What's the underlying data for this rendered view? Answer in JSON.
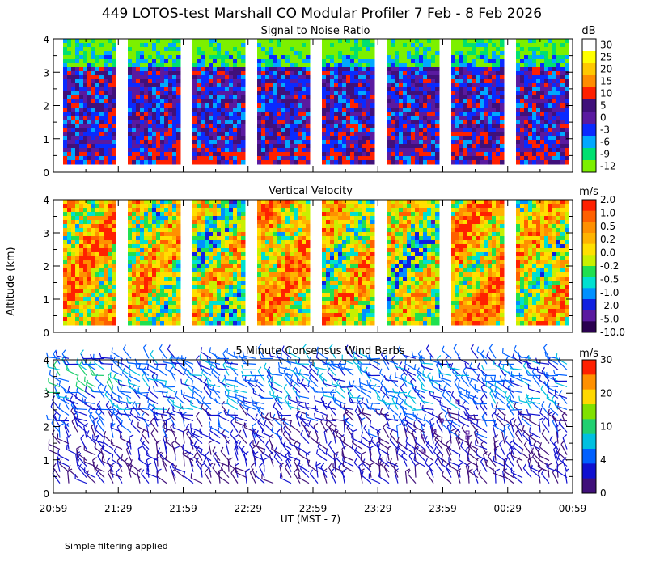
{
  "title": "449 LOTOS-test Marshall CO Modular Profiler  7 Feb -  8 Feb 2026",
  "y_axis_label": "Altitude (km)",
  "x_axis_label": "UT  (MST - 7)",
  "footnote": "Simple filtering applied",
  "colors": {
    "background": "#ffffff",
    "axis": "#000000"
  },
  "chart_data": [
    {
      "type": "heatmap",
      "title": "Signal to Noise Ratio",
      "unit": "dB",
      "ylim": [
        0,
        4
      ],
      "yticks": [
        "0",
        "1",
        "2",
        "3",
        "4"
      ],
      "xticks": [
        "20:59",
        "21:29",
        "21:59",
        "22:29",
        "22:59",
        "23:29",
        "23:59",
        "00:29",
        "00:59"
      ],
      "colorbar_labels": [
        "30",
        "25",
        "20",
        "15",
        "10",
        "5",
        "0",
        "-3",
        "-6",
        "-9",
        "-12"
      ],
      "colorbar_colors": [
        "#ffffff",
        "#ffff00",
        "#ffc800",
        "#ff8c00",
        "#ff2000",
        "#40107a",
        "#5a1aa0",
        "#0a2aff",
        "#00a8ff",
        "#00e070",
        "#7cf000"
      ],
      "segments": 8
    },
    {
      "type": "heatmap",
      "title": "Vertical Velocity",
      "unit": "m/s",
      "ylim": [
        0,
        4
      ],
      "yticks": [
        "0",
        "1",
        "2",
        "3",
        "4"
      ],
      "colorbar_labels": [
        "2.0",
        "1.0",
        "0.5",
        "0.2",
        "0.0",
        "-0.2",
        "-0.5",
        "-1.0",
        "-2.0",
        "-5.0",
        "-10.0"
      ],
      "colorbar_colors": [
        "#ff2000",
        "#ff6000",
        "#ff9000",
        "#ffb400",
        "#ffe000",
        "#c8f000",
        "#20e050",
        "#00e0d0",
        "#0090ff",
        "#1020e0",
        "#5a1aa0",
        "#2a0050"
      ],
      "segments": 8
    },
    {
      "type": "scatter",
      "title": "5 Minute Consensus Wind Barbs",
      "unit": "m/s",
      "ylim": [
        0,
        4
      ],
      "yticks": [
        "0",
        "1",
        "2",
        "3",
        "4"
      ],
      "colorbar_labels": [
        "30",
        "20",
        "10",
        "4",
        "0"
      ],
      "colorbar_colors": [
        "#ff2000",
        "#ff9000",
        "#ffd800",
        "#80e000",
        "#20d070",
        "#00c0e0",
        "#0060ff",
        "#1010d0",
        "#40107a"
      ]
    }
  ]
}
